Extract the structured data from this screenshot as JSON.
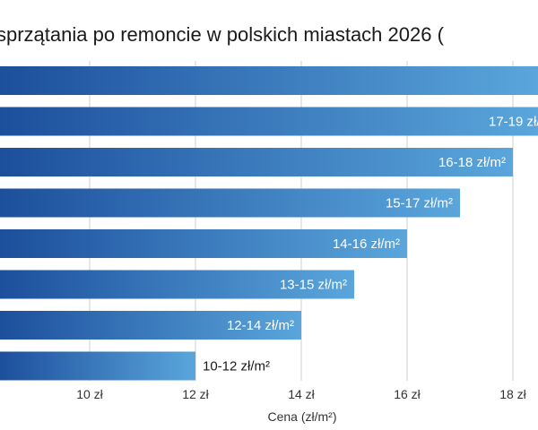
{
  "chart_data": {
    "type": "bar",
    "orientation": "horizontal",
    "title": "sprzątania po remoncie w polskich miastach 2026 (",
    "xlabel": "Cena (zł/m²)",
    "ylabel": "",
    "x_ticks": [
      "10 zł",
      "12 zł",
      "14 zł",
      "16 zł",
      "18 zł"
    ],
    "x_tick_values": [
      10,
      12,
      14,
      16,
      18
    ],
    "grid": true,
    "categories": [
      "",
      "",
      "",
      "",
      "",
      "",
      "",
      ""
    ],
    "values": [
      18.5,
      18.5,
      18.0,
      17.0,
      16.0,
      15.0,
      14.0,
      12.0
    ],
    "labels": [
      "",
      "17-19 zł/",
      "16-18 zł/m²",
      "15-17 zł/m²",
      "14-16 zł/m²",
      "13-15 zł/m²",
      "12-14 zł/m²",
      "10-12 zł/m²"
    ],
    "colors": {
      "bar_start": "#1c4f9c",
      "bar_end": "#5aa6dc",
      "grid": "#cfcfcf"
    }
  }
}
